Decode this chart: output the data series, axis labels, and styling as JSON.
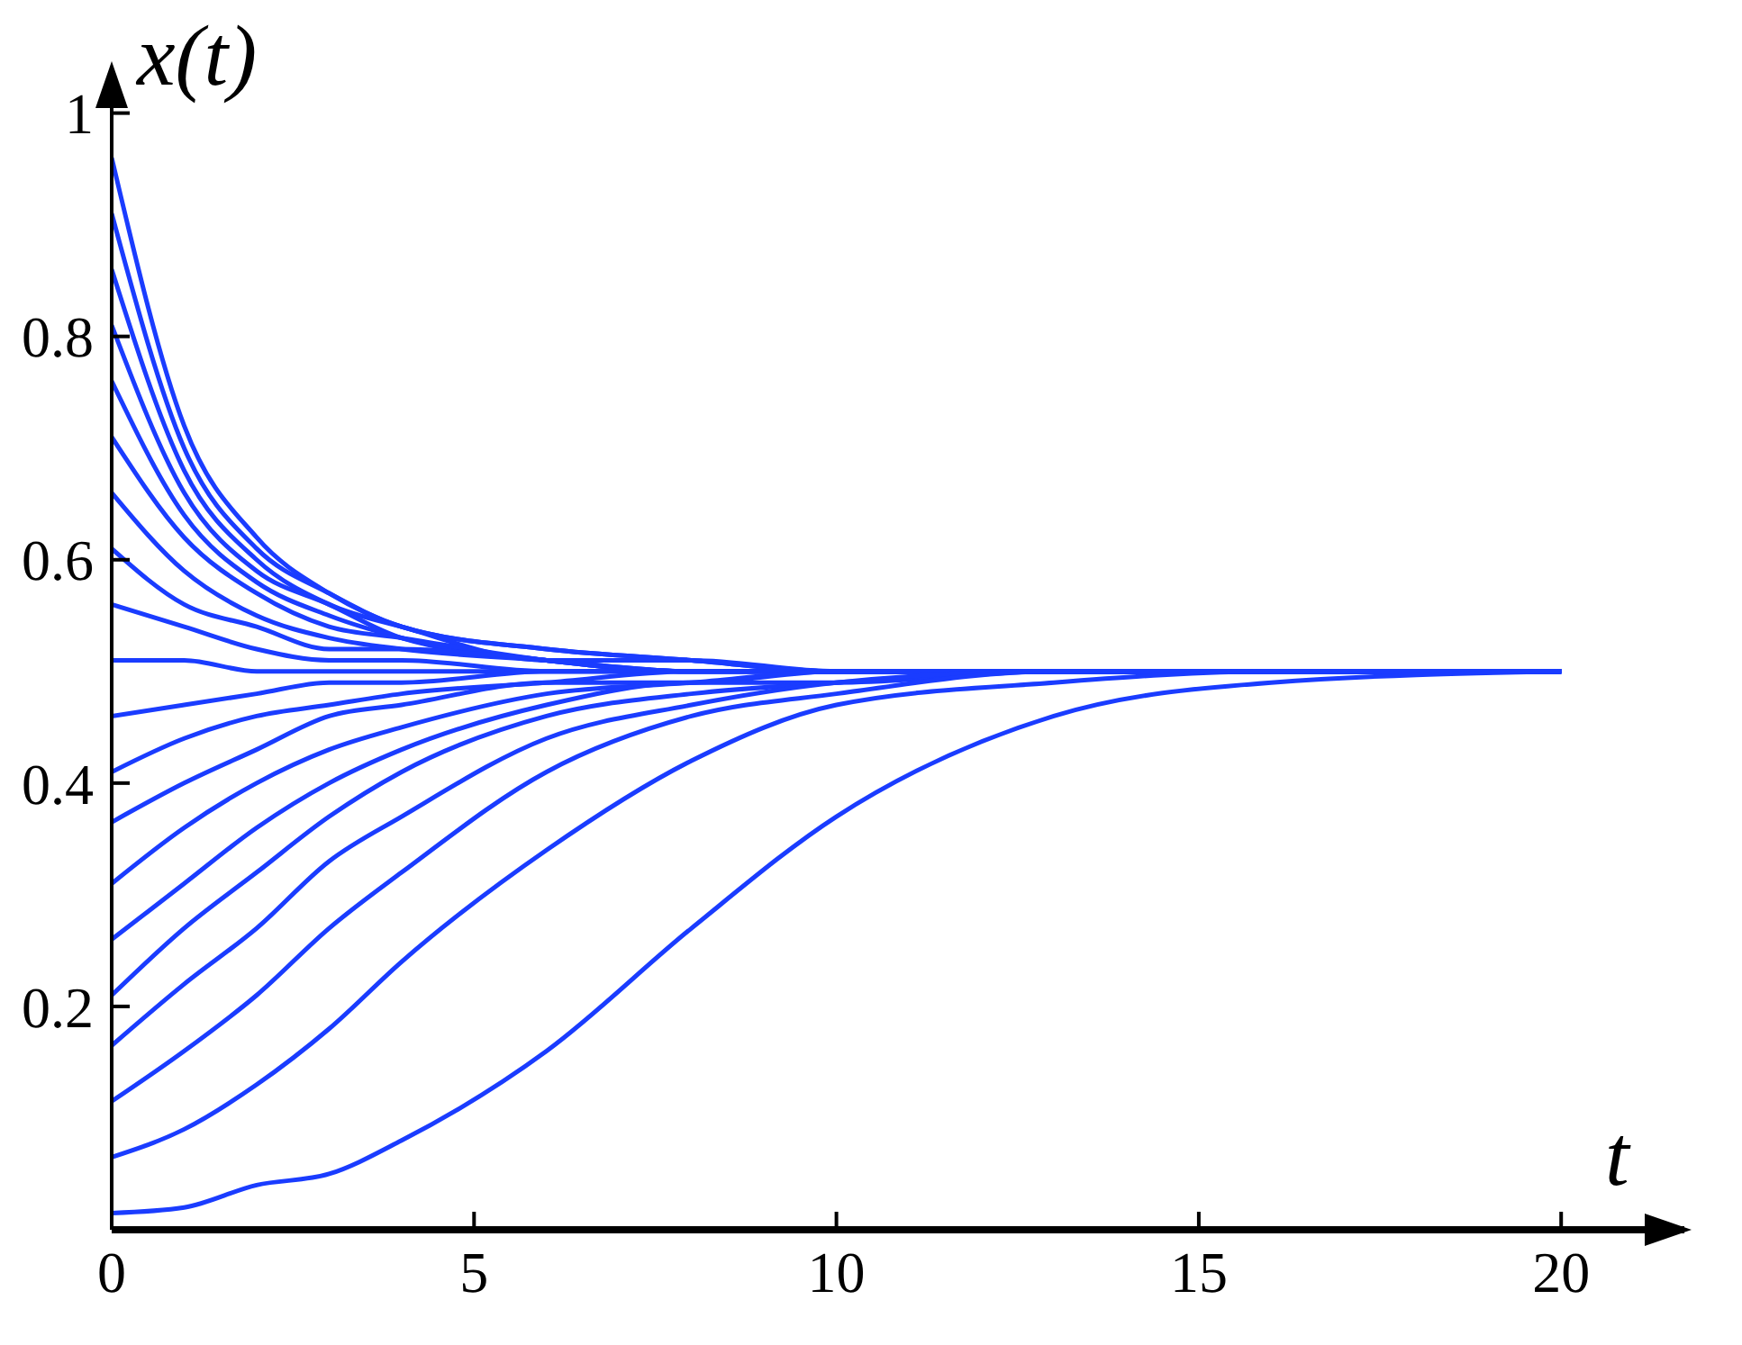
{
  "chart_data": {
    "type": "line",
    "xlabel": "t",
    "ylabel": "x(t)",
    "x": [
      0,
      1,
      2,
      3,
      4,
      6,
      8,
      10,
      13,
      16,
      20
    ],
    "xlim": [
      0,
      21.7
    ],
    "ylim": [
      0,
      1.04
    ],
    "xticks": [
      0,
      5,
      10,
      15,
      20
    ],
    "yticks": [
      0.2,
      0.4,
      0.6,
      0.8,
      1
    ],
    "marker": "none",
    "line_style": "solid",
    "series": [
      {
        "color": "#1a3cff",
        "values": [
          0.96,
          0.72,
          0.62,
          0.57,
          0.54,
          0.52,
          0.51,
          0.5,
          0.5,
          0.5,
          0.5
        ]
      },
      {
        "color": "#1a3cff",
        "values": [
          0.91,
          0.7,
          0.61,
          0.57,
          0.54,
          0.52,
          0.51,
          0.5,
          0.5,
          0.5,
          0.5
        ]
      },
      {
        "color": "#1a3cff",
        "values": [
          0.86,
          0.68,
          0.6,
          0.56,
          0.54,
          0.51,
          0.51,
          0.5,
          0.5,
          0.5,
          0.5
        ]
      },
      {
        "color": "#1a3cff",
        "values": [
          0.81,
          0.66,
          0.59,
          0.56,
          0.53,
          0.51,
          0.5,
          0.5,
          0.5,
          0.5,
          0.5
        ]
      },
      {
        "color": "#1a3cff",
        "values": [
          0.76,
          0.64,
          0.58,
          0.55,
          0.53,
          0.51,
          0.5,
          0.5,
          0.5,
          0.5,
          0.5
        ]
      },
      {
        "color": "#1a3cff",
        "values": [
          0.71,
          0.62,
          0.57,
          0.54,
          0.53,
          0.51,
          0.5,
          0.5,
          0.5,
          0.5,
          0.5
        ]
      },
      {
        "color": "#1a3cff",
        "values": [
          0.66,
          0.59,
          0.55,
          0.53,
          0.52,
          0.51,
          0.5,
          0.5,
          0.5,
          0.5,
          0.5
        ]
      },
      {
        "color": "#1a3cff",
        "values": [
          0.61,
          0.56,
          0.54,
          0.52,
          0.52,
          0.51,
          0.5,
          0.5,
          0.5,
          0.5,
          0.5
        ]
      },
      {
        "color": "#1a3cff",
        "values": [
          0.56,
          0.54,
          0.52,
          0.51,
          0.51,
          0.5,
          0.5,
          0.5,
          0.5,
          0.5,
          0.5
        ]
      },
      {
        "color": "#1a3cff",
        "values": [
          0.51,
          0.51,
          0.5,
          0.5,
          0.5,
          0.5,
          0.5,
          0.5,
          0.5,
          0.5,
          0.5
        ]
      },
      {
        "color": "#1a3cff",
        "values": [
          0.46,
          0.47,
          0.48,
          0.49,
          0.49,
          0.5,
          0.5,
          0.5,
          0.5,
          0.5,
          0.5
        ]
      },
      {
        "color": "#1a3cff",
        "values": [
          0.41,
          0.44,
          0.46,
          0.47,
          0.48,
          0.49,
          0.5,
          0.5,
          0.5,
          0.5,
          0.5
        ]
      },
      {
        "color": "#1a3cff",
        "values": [
          0.365,
          0.4,
          0.43,
          0.46,
          0.47,
          0.49,
          0.49,
          0.5,
          0.5,
          0.5,
          0.5
        ]
      },
      {
        "color": "#1a3cff",
        "values": [
          0.31,
          0.36,
          0.4,
          0.43,
          0.45,
          0.48,
          0.49,
          0.5,
          0.5,
          0.5,
          0.5
        ]
      },
      {
        "color": "#1a3cff",
        "values": [
          0.26,
          0.31,
          0.36,
          0.4,
          0.43,
          0.47,
          0.49,
          0.49,
          0.5,
          0.5,
          0.5
        ]
      },
      {
        "color": "#1a3cff",
        "values": [
          0.21,
          0.27,
          0.32,
          0.37,
          0.41,
          0.46,
          0.48,
          0.49,
          0.5,
          0.5,
          0.5
        ]
      },
      {
        "color": "#1a3cff",
        "values": [
          0.165,
          0.22,
          0.27,
          0.33,
          0.37,
          0.44,
          0.47,
          0.49,
          0.5,
          0.5,
          0.5
        ]
      },
      {
        "color": "#1a3cff",
        "values": [
          0.115,
          0.16,
          0.21,
          0.27,
          0.32,
          0.41,
          0.46,
          0.48,
          0.5,
          0.5,
          0.5
        ]
      },
      {
        "color": "#1a3cff",
        "values": [
          0.065,
          0.09,
          0.13,
          0.18,
          0.24,
          0.34,
          0.42,
          0.47,
          0.49,
          0.5,
          0.5
        ]
      },
      {
        "color": "#1a3cff",
        "values": [
          0.015,
          0.02,
          0.04,
          0.05,
          0.08,
          0.16,
          0.27,
          0.37,
          0.46,
          0.49,
          0.5
        ]
      }
    ]
  }
}
